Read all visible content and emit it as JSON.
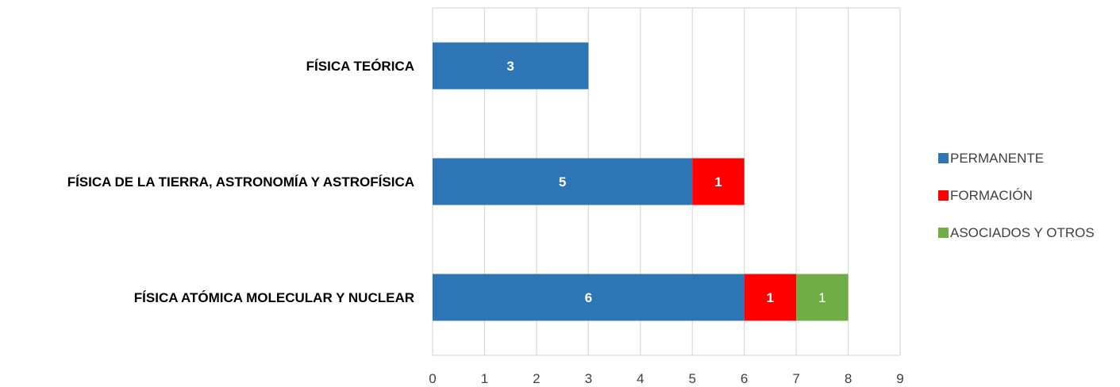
{
  "chart_data": {
    "type": "bar",
    "orientation": "horizontal",
    "stacked": true,
    "categories": [
      "FÍSICA TEÓRICA",
      "FÍSICA DE LA TIERRA, ASTRONOMÍA Y ASTROFÍSICA",
      "FÍSICA ATÓMICA MOLECULAR  Y NUCLEAR"
    ],
    "series": [
      {
        "name": "PERMANENTE",
        "color": "#2e75b6",
        "values": [
          3,
          5,
          6
        ],
        "label_bold": true
      },
      {
        "name": "FORMACIÓN",
        "color": "#ff0000",
        "values": [
          0,
          1,
          1
        ],
        "label_bold": true
      },
      {
        "name": "ASOCIADOS Y OTROS",
        "color": "#70ad47",
        "values": [
          0,
          0,
          1
        ],
        "label_bold": false
      }
    ],
    "xlim": [
      0,
      9
    ],
    "xticks": [
      "0",
      "1",
      "2",
      "3",
      "4",
      "5",
      "6",
      "7",
      "8",
      "9"
    ],
    "grid": "vertical",
    "legend": "right",
    "title": "",
    "xlabel": "",
    "ylabel": ""
  }
}
